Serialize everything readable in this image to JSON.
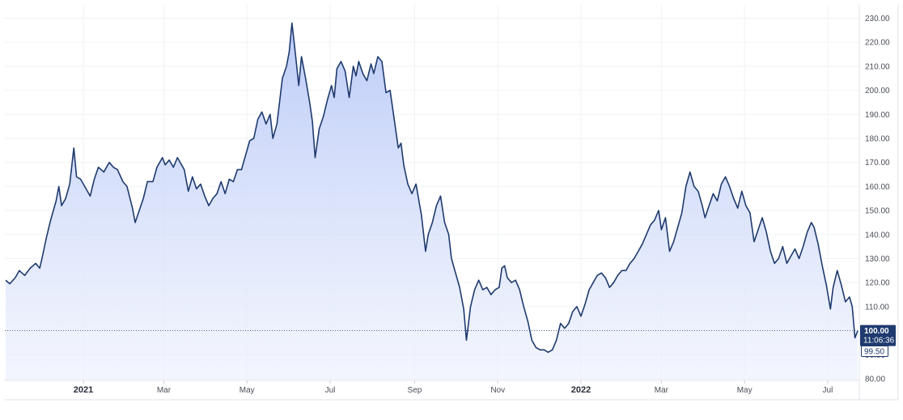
{
  "chart_data": {
    "type": "area",
    "title": "",
    "xlabel": "",
    "ylabel": "",
    "ylim": [
      80,
      232
    ],
    "xlim": [
      "2020-11-05",
      "2022-07-23"
    ],
    "y_ticks": [
      "80.00",
      "90.00",
      "100.00",
      "110.00",
      "120.00",
      "130.00",
      "140.00",
      "150.00",
      "160.00",
      "170.00",
      "180.00",
      "190.00",
      "200.00",
      "210.00",
      "220.00",
      "230.00"
    ],
    "x_ticks": [
      {
        "label": "2021",
        "date": "2021-01-01",
        "bold": true
      },
      {
        "label": "Mar",
        "date": "2021-03-01",
        "bold": false
      },
      {
        "label": "May",
        "date": "2021-05-01",
        "bold": false
      },
      {
        "label": "Jul",
        "date": "2021-07-01",
        "bold": false
      },
      {
        "label": "Sep",
        "date": "2021-09-01",
        "bold": false
      },
      {
        "label": "Nov",
        "date": "2021-11-01",
        "bold": false
      },
      {
        "label": "2022",
        "date": "2022-01-01",
        "bold": true
      },
      {
        "label": "Mar",
        "date": "2022-03-01",
        "bold": false
      },
      {
        "label": "May",
        "date": "2022-05-01",
        "bold": false
      },
      {
        "label": "Jul",
        "date": "2022-07-01",
        "bold": false
      }
    ],
    "grid": true,
    "legend": "none",
    "series": [
      {
        "color": "#1e3a6e",
        "fill": "#c9d6fb",
        "points": [
          [
            "2020-11-05",
            121
          ],
          [
            "2020-11-08",
            119.5
          ],
          [
            "2020-11-12",
            122
          ],
          [
            "2020-11-15",
            125
          ],
          [
            "2020-11-19",
            123
          ],
          [
            "2020-11-23",
            126
          ],
          [
            "2020-11-27",
            128
          ],
          [
            "2020-11-30",
            126
          ],
          [
            "2020-12-02",
            131
          ],
          [
            "2020-12-05",
            139
          ],
          [
            "2020-12-08",
            146
          ],
          [
            "2020-12-12",
            154
          ],
          [
            "2020-12-14",
            160
          ],
          [
            "2020-12-16",
            152
          ],
          [
            "2020-12-19",
            155
          ],
          [
            "2020-12-22",
            161
          ],
          [
            "2020-12-25",
            176
          ],
          [
            "2020-12-27",
            164
          ],
          [
            "2020-12-30",
            163
          ],
          [
            "2021-01-03",
            159
          ],
          [
            "2021-01-06",
            156
          ],
          [
            "2021-01-09",
            163
          ],
          [
            "2021-01-12",
            168
          ],
          [
            "2021-01-16",
            166
          ],
          [
            "2021-01-20",
            170
          ],
          [
            "2021-01-23",
            168
          ],
          [
            "2021-01-26",
            167
          ],
          [
            "2021-01-30",
            162
          ],
          [
            "2021-02-02",
            160
          ],
          [
            "2021-02-06",
            151
          ],
          [
            "2021-02-08",
            145
          ],
          [
            "2021-02-11",
            150
          ],
          [
            "2021-02-14",
            155
          ],
          [
            "2021-02-17",
            162
          ],
          [
            "2021-02-21",
            162
          ],
          [
            "2021-02-24",
            168
          ],
          [
            "2021-02-28",
            172
          ],
          [
            "2021-03-02",
            169
          ],
          [
            "2021-03-05",
            171
          ],
          [
            "2021-03-08",
            168
          ],
          [
            "2021-03-11",
            172
          ],
          [
            "2021-03-14",
            169
          ],
          [
            "2021-03-16",
            167
          ],
          [
            "2021-03-19",
            158
          ],
          [
            "2021-03-22",
            164
          ],
          [
            "2021-03-25",
            159
          ],
          [
            "2021-03-28",
            161
          ],
          [
            "2021-03-31",
            156
          ],
          [
            "2021-04-03",
            152
          ],
          [
            "2021-04-06",
            155
          ],
          [
            "2021-04-09",
            157
          ],
          [
            "2021-04-12",
            162
          ],
          [
            "2021-04-15",
            157
          ],
          [
            "2021-04-18",
            163
          ],
          [
            "2021-04-21",
            162
          ],
          [
            "2021-04-24",
            167
          ],
          [
            "2021-04-27",
            167
          ],
          [
            "2021-04-30",
            173
          ],
          [
            "2021-05-03",
            179
          ],
          [
            "2021-05-06",
            180
          ],
          [
            "2021-05-09",
            188
          ],
          [
            "2021-05-12",
            191
          ],
          [
            "2021-05-15",
            186
          ],
          [
            "2021-05-18",
            190
          ],
          [
            "2021-05-20",
            180
          ],
          [
            "2021-05-23",
            186
          ],
          [
            "2021-05-27",
            205
          ],
          [
            "2021-05-30",
            210
          ],
          [
            "2021-06-01",
            216
          ],
          [
            "2021-06-03",
            228
          ],
          [
            "2021-06-05",
            218
          ],
          [
            "2021-06-08",
            202
          ],
          [
            "2021-06-10",
            214
          ],
          [
            "2021-06-13",
            205
          ],
          [
            "2021-06-16",
            195
          ],
          [
            "2021-06-18",
            187
          ],
          [
            "2021-06-20",
            172
          ],
          [
            "2021-06-23",
            184
          ],
          [
            "2021-06-26",
            189
          ],
          [
            "2021-06-29",
            196
          ],
          [
            "2021-07-02",
            202
          ],
          [
            "2021-07-04",
            197
          ],
          [
            "2021-07-06",
            209
          ],
          [
            "2021-07-09",
            212
          ],
          [
            "2021-07-12",
            208
          ],
          [
            "2021-07-15",
            197
          ],
          [
            "2021-07-18",
            210
          ],
          [
            "2021-07-20",
            206
          ],
          [
            "2021-07-22",
            212
          ],
          [
            "2021-07-25",
            207
          ],
          [
            "2021-07-28",
            204
          ],
          [
            "2021-07-31",
            211
          ],
          [
            "2021-08-02",
            207
          ],
          [
            "2021-08-05",
            214
          ],
          [
            "2021-08-08",
            212
          ],
          [
            "2021-08-11",
            199
          ],
          [
            "2021-08-14",
            200
          ],
          [
            "2021-08-17",
            188
          ],
          [
            "2021-08-20",
            176
          ],
          [
            "2021-08-22",
            178
          ],
          [
            "2021-08-24",
            169
          ],
          [
            "2021-08-27",
            161
          ],
          [
            "2021-08-30",
            157
          ],
          [
            "2021-09-02",
            161
          ],
          [
            "2021-09-06",
            148
          ],
          [
            "2021-09-09",
            133
          ],
          [
            "2021-09-11",
            140
          ],
          [
            "2021-09-14",
            145
          ],
          [
            "2021-09-17",
            152
          ],
          [
            "2021-09-20",
            156
          ],
          [
            "2021-09-23",
            145
          ],
          [
            "2021-09-26",
            140
          ],
          [
            "2021-09-28",
            130
          ],
          [
            "2021-10-01",
            124
          ],
          [
            "2021-10-04",
            118
          ],
          [
            "2021-10-07",
            109
          ],
          [
            "2021-10-09",
            96
          ],
          [
            "2021-10-12",
            110
          ],
          [
            "2021-10-15",
            117
          ],
          [
            "2021-10-18",
            121
          ],
          [
            "2021-10-21",
            117
          ],
          [
            "2021-10-24",
            118
          ],
          [
            "2021-10-27",
            115
          ],
          [
            "2021-10-30",
            117
          ],
          [
            "2021-11-02",
            118
          ],
          [
            "2021-11-04",
            126
          ],
          [
            "2021-11-06",
            127
          ],
          [
            "2021-11-08",
            122
          ],
          [
            "2021-11-11",
            120
          ],
          [
            "2021-11-14",
            121
          ],
          [
            "2021-11-17",
            117
          ],
          [
            "2021-11-20",
            110
          ],
          [
            "2021-11-23",
            104
          ],
          [
            "2021-11-26",
            96
          ],
          [
            "2021-11-29",
            93
          ],
          [
            "2021-12-02",
            92
          ],
          [
            "2021-12-05",
            92
          ],
          [
            "2021-12-08",
            91
          ],
          [
            "2021-12-11",
            92
          ],
          [
            "2021-12-14",
            96
          ],
          [
            "2021-12-17",
            103
          ],
          [
            "2021-12-20",
            101
          ],
          [
            "2021-12-23",
            103
          ],
          [
            "2021-12-26",
            108
          ],
          [
            "2021-12-29",
            110
          ],
          [
            "2022-01-01",
            106
          ],
          [
            "2022-01-04",
            111
          ],
          [
            "2022-01-07",
            117
          ],
          [
            "2022-01-10",
            120
          ],
          [
            "2022-01-13",
            123
          ],
          [
            "2022-01-16",
            124
          ],
          [
            "2022-01-19",
            122
          ],
          [
            "2022-01-22",
            118
          ],
          [
            "2022-01-25",
            120
          ],
          [
            "2022-01-28",
            123
          ],
          [
            "2022-01-31",
            125
          ],
          [
            "2022-02-03",
            125
          ],
          [
            "2022-02-06",
            128
          ],
          [
            "2022-02-09",
            130
          ],
          [
            "2022-02-12",
            133
          ],
          [
            "2022-02-15",
            136
          ],
          [
            "2022-02-18",
            140
          ],
          [
            "2022-02-21",
            144
          ],
          [
            "2022-02-24",
            146
          ],
          [
            "2022-02-27",
            150
          ],
          [
            "2022-03-01",
            142
          ],
          [
            "2022-03-04",
            147
          ],
          [
            "2022-03-07",
            133
          ],
          [
            "2022-03-10",
            137
          ],
          [
            "2022-03-13",
            143
          ],
          [
            "2022-03-16",
            149
          ],
          [
            "2022-03-19",
            160
          ],
          [
            "2022-03-22",
            166
          ],
          [
            "2022-03-25",
            160
          ],
          [
            "2022-03-28",
            158
          ],
          [
            "2022-03-31",
            152
          ],
          [
            "2022-04-02",
            147
          ],
          [
            "2022-04-05",
            152
          ],
          [
            "2022-04-08",
            157
          ],
          [
            "2022-04-11",
            154
          ],
          [
            "2022-04-14",
            161
          ],
          [
            "2022-04-17",
            164
          ],
          [
            "2022-04-20",
            160
          ],
          [
            "2022-04-23",
            155
          ],
          [
            "2022-04-26",
            151
          ],
          [
            "2022-04-29",
            158
          ],
          [
            "2022-05-02",
            152
          ],
          [
            "2022-05-05",
            149
          ],
          [
            "2022-05-08",
            137
          ],
          [
            "2022-05-11",
            142
          ],
          [
            "2022-05-14",
            147
          ],
          [
            "2022-05-17",
            141
          ],
          [
            "2022-05-20",
            133
          ],
          [
            "2022-05-23",
            128
          ],
          [
            "2022-05-26",
            130
          ],
          [
            "2022-05-29",
            135
          ],
          [
            "2022-06-01",
            128
          ],
          [
            "2022-06-04",
            131
          ],
          [
            "2022-06-07",
            134
          ],
          [
            "2022-06-10",
            130
          ],
          [
            "2022-06-13",
            135
          ],
          [
            "2022-06-16",
            141
          ],
          [
            "2022-06-19",
            145
          ],
          [
            "2022-06-21",
            143
          ],
          [
            "2022-06-24",
            136
          ],
          [
            "2022-06-27",
            127
          ],
          [
            "2022-06-30",
            119
          ],
          [
            "2022-07-03",
            109
          ],
          [
            "2022-07-05",
            118
          ],
          [
            "2022-07-08",
            125
          ],
          [
            "2022-07-11",
            119
          ],
          [
            "2022-07-14",
            112
          ],
          [
            "2022-07-17",
            114
          ],
          [
            "2022-07-19",
            110
          ],
          [
            "2022-07-21",
            97
          ],
          [
            "2022-07-23",
            100
          ]
        ]
      }
    ],
    "last_price": {
      "label": "100.00",
      "value": 100
    },
    "countdown": "11:06:36",
    "low_tag": {
      "label": "99.50",
      "value": 99.5
    }
  }
}
